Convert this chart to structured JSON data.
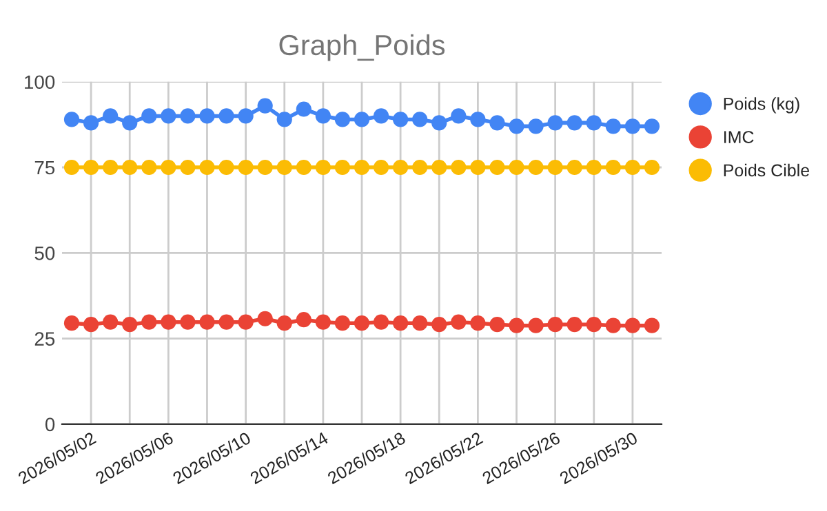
{
  "chart_data": {
    "type": "line",
    "title": "Graph_Poids",
    "x": [
      "2026-05-01",
      "2026-05-02",
      "2026-05-03",
      "2026-05-04",
      "2026-05-05",
      "2026-05-06",
      "2026-05-07",
      "2026-05-08",
      "2026-05-09",
      "2026-05-10",
      "2026-05-11",
      "2026-05-12",
      "2026-05-13",
      "2026-05-14",
      "2026-05-15",
      "2026-05-16",
      "2026-05-17",
      "2026-05-18",
      "2026-05-19",
      "2026-05-20",
      "2026-05-21",
      "2026-05-22",
      "2026-05-23",
      "2026-05-24",
      "2026-05-25",
      "2026-05-26",
      "2026-05-27",
      "2026-05-28",
      "2026-05-29",
      "2026-05-30",
      "2026-05-31"
    ],
    "series": [
      {
        "name": "Poids (kg)",
        "color": "#4285f4",
        "values": [
          89,
          88,
          90,
          88,
          90,
          90,
          90,
          90,
          90,
          90,
          93,
          89,
          92,
          90,
          89,
          89,
          90,
          89,
          89,
          88,
          90,
          89,
          88,
          87,
          87,
          88,
          88,
          88,
          87,
          87,
          87
        ]
      },
      {
        "name": "IMC",
        "color": "#ea4335",
        "values": [
          29.5,
          29.1,
          29.8,
          29.1,
          29.8,
          29.8,
          29.8,
          29.8,
          29.8,
          29.8,
          30.8,
          29.5,
          30.5,
          29.8,
          29.5,
          29.5,
          29.8,
          29.5,
          29.5,
          29.1,
          29.8,
          29.5,
          29.1,
          28.8,
          28.8,
          29.1,
          29.1,
          29.1,
          28.8,
          28.8,
          28.8
        ]
      },
      {
        "name": "Poids Cible",
        "color": "#fbbc04",
        "values": [
          75,
          75,
          75,
          75,
          75,
          75,
          75,
          75,
          75,
          75,
          75,
          75,
          75,
          75,
          75,
          75,
          75,
          75,
          75,
          75,
          75,
          75,
          75,
          75,
          75,
          75,
          75,
          75,
          75,
          75,
          75
        ]
      }
    ],
    "xlim": [
      "2026-04-30T12:00",
      "2026-05-31T12:00"
    ],
    "xticks": [
      {
        "value": "2026-05-02",
        "label": "2026/05/02"
      },
      {
        "value": "2026-05-04",
        "label": null
      },
      {
        "value": "2026-05-06",
        "label": "2026/05/06"
      },
      {
        "value": "2026-05-08",
        "label": null
      },
      {
        "value": "2026-05-10",
        "label": "2026/05/10"
      },
      {
        "value": "2026-05-12",
        "label": null
      },
      {
        "value": "2026-05-14",
        "label": "2026/05/14"
      },
      {
        "value": "2026-05-16",
        "label": null
      },
      {
        "value": "2026-05-18",
        "label": "2026/05/18"
      },
      {
        "value": "2026-05-20",
        "label": null
      },
      {
        "value": "2026-05-22",
        "label": "2026/05/22"
      },
      {
        "value": "2026-05-24",
        "label": null
      },
      {
        "value": "2026-05-26",
        "label": "2026/05/26"
      },
      {
        "value": "2026-05-28",
        "label": null
      },
      {
        "value": "2026-05-30",
        "label": "2026/05/30"
      }
    ],
    "ylim": [
      0,
      100
    ],
    "yticks": [
      0,
      25,
      50,
      75,
      100
    ],
    "grid": true,
    "legend": "top right",
    "marker": "circle",
    "line_style": "solid"
  }
}
